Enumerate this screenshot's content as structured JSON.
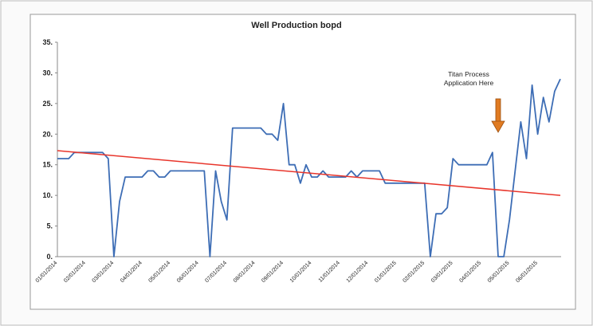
{
  "chart_data": {
    "type": "line",
    "title": "Well Production  bopd",
    "annotation": "Titan Process\nApplication Here",
    "categories": [
      "01/01/2014",
      null,
      null,
      null,
      null,
      "02/01/2014",
      null,
      null,
      null,
      null,
      "03/01/2014",
      null,
      null,
      null,
      null,
      "04/01/2014",
      null,
      null,
      null,
      null,
      "05/01/2014",
      null,
      null,
      null,
      null,
      "06/01/2014",
      null,
      null,
      null,
      null,
      "07/01/2014",
      null,
      null,
      null,
      null,
      "08/01/2014",
      null,
      null,
      null,
      null,
      "09/01/2014",
      null,
      null,
      null,
      null,
      "10/01/2014",
      null,
      null,
      null,
      null,
      "11/01/2014",
      null,
      null,
      null,
      null,
      "12/01/2014",
      null,
      null,
      null,
      null,
      "01/01/2015",
      null,
      null,
      null,
      null,
      "02/01/2015",
      null,
      null,
      null,
      null,
      "03/01/2015",
      null,
      null,
      null,
      null,
      "04/01/2015",
      null,
      null,
      null,
      null,
      "05/01/2015",
      null,
      null,
      null,
      null,
      "06/01/2015",
      null,
      null,
      null,
      null
    ],
    "series": [
      {
        "color": "#3d6db5",
        "values": [
          16,
          16,
          16,
          17,
          17,
          17,
          17,
          17,
          17,
          16,
          0,
          9,
          13,
          13,
          13,
          13,
          14,
          14,
          13,
          13,
          14,
          14,
          14,
          14,
          14,
          14,
          14,
          0,
          14,
          9,
          6,
          21,
          21,
          21,
          21,
          21,
          21,
          20,
          20,
          19,
          25,
          15,
          15,
          12,
          15,
          13,
          13,
          14,
          13,
          13,
          13,
          13,
          14,
          13,
          14,
          14,
          14,
          14,
          12,
          12,
          12,
          12,
          12,
          12,
          12,
          12,
          0,
          7,
          7,
          8,
          16,
          15,
          15,
          15,
          15,
          15,
          15,
          17,
          0,
          0,
          6,
          14,
          22,
          16,
          28,
          20,
          26,
          22,
          27,
          29
        ]
      }
    ],
    "trendline": {
      "color": "#e8352b",
      "start": 17.3,
      "end": 10
    },
    "ylim": [
      0,
      35
    ],
    "yticks": [
      {
        "value": 0,
        "label": "0."
      },
      {
        "value": 5,
        "label": "5."
      },
      {
        "value": 10,
        "label": "10."
      },
      {
        "value": 15,
        "label": "15."
      },
      {
        "value": 20,
        "label": "20."
      },
      {
        "value": 25,
        "label": "25."
      },
      {
        "value": 30,
        "label": "30."
      },
      {
        "value": 35,
        "label": "35."
      }
    ],
    "grid": false
  }
}
